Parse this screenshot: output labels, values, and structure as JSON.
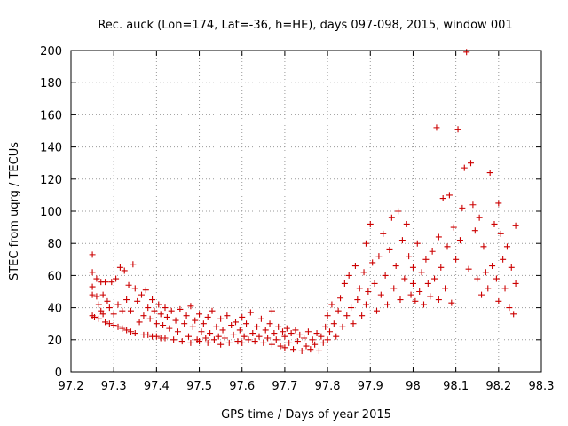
{
  "chart_data": {
    "type": "scatter",
    "title": "Rec. auck (Lon=174, Lat=-36, h=HE), days 097-098, 2015, window 001",
    "xlabel": "GPS time / Days of year 2015",
    "ylabel": "STEC from uqrg / TECUs",
    "xlim": [
      97.2,
      98.3
    ],
    "ylim": [
      0,
      200
    ],
    "x_ticks": [
      97.2,
      97.3,
      97.4,
      97.5,
      97.6,
      97.7,
      97.8,
      97.9,
      98,
      98.1,
      98.2,
      98.3
    ],
    "x_tick_labels": [
      "97.2",
      "97.3",
      "97.4",
      "97.5",
      "97.6",
      "97.7",
      "97.8",
      "97.9",
      "98",
      "98.1",
      "98.2",
      "98.3"
    ],
    "y_ticks": [
      0,
      20,
      40,
      60,
      80,
      100,
      120,
      140,
      160,
      180,
      200
    ],
    "y_tick_labels": [
      "0",
      "20",
      "40",
      "60",
      "80",
      "100",
      "120",
      "140",
      "160",
      "180",
      "200"
    ],
    "grid": true,
    "marker": "+",
    "series_color": "#cc0000",
    "series": [
      {
        "points": [
          [
            97.25,
            73
          ],
          [
            97.25,
            62
          ],
          [
            97.25,
            53
          ],
          [
            97.25,
            48
          ],
          [
            97.25,
            35
          ],
          [
            97.255,
            34
          ],
          [
            97.26,
            58
          ],
          [
            97.26,
            47
          ],
          [
            97.265,
            42
          ],
          [
            97.265,
            33
          ],
          [
            97.27,
            56
          ],
          [
            97.27,
            38
          ],
          [
            97.275,
            48
          ],
          [
            97.275,
            36
          ],
          [
            97.28,
            56
          ],
          [
            97.28,
            31
          ],
          [
            97.285,
            44
          ],
          [
            97.29,
            40
          ],
          [
            97.29,
            30
          ],
          [
            97.295,
            56
          ],
          [
            97.3,
            36
          ],
          [
            97.3,
            29
          ],
          [
            97.305,
            58
          ],
          [
            97.31,
            42
          ],
          [
            97.31,
            28
          ],
          [
            97.315,
            65
          ],
          [
            97.32,
            38
          ],
          [
            97.32,
            27
          ],
          [
            97.325,
            63
          ],
          [
            97.33,
            45
          ],
          [
            97.33,
            26
          ],
          [
            97.335,
            54
          ],
          [
            97.34,
            38
          ],
          [
            97.34,
            25
          ],
          [
            97.345,
            67
          ],
          [
            97.35,
            52
          ],
          [
            97.35,
            24
          ],
          [
            97.355,
            44
          ],
          [
            97.36,
            31
          ],
          [
            97.365,
            48
          ],
          [
            97.37,
            35
          ],
          [
            97.37,
            23
          ],
          [
            97.375,
            51
          ],
          [
            97.38,
            40
          ],
          [
            97.38,
            23
          ],
          [
            97.385,
            33
          ],
          [
            97.39,
            45
          ],
          [
            97.39,
            22
          ],
          [
            97.395,
            38
          ],
          [
            97.4,
            30
          ],
          [
            97.4,
            22
          ],
          [
            97.405,
            42
          ],
          [
            97.41,
            36
          ],
          [
            97.41,
            21
          ],
          [
            97.415,
            29
          ],
          [
            97.42,
            40
          ],
          [
            97.42,
            21
          ],
          [
            97.425,
            34
          ],
          [
            97.43,
            27
          ],
          [
            97.435,
            38
          ],
          [
            97.44,
            20
          ],
          [
            97.445,
            32
          ],
          [
            97.45,
            25
          ],
          [
            97.455,
            39
          ],
          [
            97.46,
            19
          ],
          [
            97.465,
            30
          ],
          [
            97.47,
            35
          ],
          [
            97.475,
            22
          ],
          [
            97.48,
            41
          ],
          [
            97.48,
            18
          ],
          [
            97.485,
            28
          ],
          [
            97.49,
            32
          ],
          [
            97.495,
            20
          ],
          [
            97.5,
            36
          ],
          [
            97.5,
            19
          ],
          [
            97.505,
            25
          ],
          [
            97.51,
            30
          ],
          [
            97.515,
            21
          ],
          [
            97.52,
            34
          ],
          [
            97.52,
            18
          ],
          [
            97.525,
            24
          ],
          [
            97.53,
            38
          ],
          [
            97.535,
            20
          ],
          [
            97.54,
            28
          ],
          [
            97.545,
            22
          ],
          [
            97.55,
            33
          ],
          [
            97.55,
            17
          ],
          [
            97.555,
            26
          ],
          [
            97.56,
            21
          ],
          [
            97.565,
            35
          ],
          [
            97.57,
            18
          ],
          [
            97.575,
            29
          ],
          [
            97.58,
            23
          ],
          [
            97.585,
            31
          ],
          [
            97.59,
            19
          ],
          [
            97.595,
            26
          ],
          [
            97.6,
            34
          ],
          [
            97.6,
            18
          ],
          [
            97.605,
            22
          ],
          [
            97.61,
            30
          ],
          [
            97.615,
            20
          ],
          [
            97.62,
            37
          ],
          [
            97.625,
            24
          ],
          [
            97.63,
            19
          ],
          [
            97.635,
            28
          ],
          [
            97.64,
            22
          ],
          [
            97.645,
            33
          ],
          [
            97.65,
            18
          ],
          [
            97.655,
            26
          ],
          [
            97.66,
            21
          ],
          [
            97.665,
            30
          ],
          [
            97.67,
            38
          ],
          [
            97.67,
            17
          ],
          [
            97.675,
            24
          ],
          [
            97.68,
            20
          ],
          [
            97.685,
            28
          ],
          [
            97.69,
            16
          ],
          [
            97.695,
            25
          ],
          [
            97.7,
            22
          ],
          [
            97.7,
            15
          ],
          [
            97.705,
            27
          ],
          [
            97.71,
            18
          ],
          [
            97.715,
            24
          ],
          [
            97.72,
            14
          ],
          [
            97.725,
            26
          ],
          [
            97.73,
            19
          ],
          [
            97.735,
            23
          ],
          [
            97.74,
            13
          ],
          [
            97.745,
            21
          ],
          [
            97.75,
            16
          ],
          [
            97.755,
            25
          ],
          [
            97.76,
            14
          ],
          [
            97.765,
            20
          ],
          [
            97.77,
            17
          ],
          [
            97.775,
            24
          ],
          [
            97.78,
            13
          ],
          [
            97.785,
            22
          ],
          [
            97.79,
            18
          ],
          [
            97.795,
            28
          ],
          [
            97.8,
            20
          ],
          [
            97.8,
            35
          ],
          [
            97.805,
            25
          ],
          [
            97.81,
            42
          ],
          [
            97.815,
            30
          ],
          [
            97.82,
            22
          ],
          [
            97.825,
            38
          ],
          [
            97.83,
            46
          ],
          [
            97.835,
            28
          ],
          [
            97.84,
            55
          ],
          [
            97.845,
            35
          ],
          [
            97.85,
            60
          ],
          [
            97.855,
            40
          ],
          [
            97.86,
            30
          ],
          [
            97.865,
            66
          ],
          [
            97.87,
            45
          ],
          [
            97.875,
            52
          ],
          [
            97.88,
            35
          ],
          [
            97.885,
            62
          ],
          [
            97.89,
            80
          ],
          [
            97.89,
            42
          ],
          [
            97.895,
            50
          ],
          [
            97.9,
            92
          ],
          [
            97.905,
            68
          ],
          [
            97.91,
            55
          ],
          [
            97.915,
            38
          ],
          [
            97.92,
            72
          ],
          [
            97.925,
            48
          ],
          [
            97.93,
            86
          ],
          [
            97.935,
            60
          ],
          [
            97.94,
            42
          ],
          [
            97.945,
            76
          ],
          [
            97.95,
            96
          ],
          [
            97.955,
            52
          ],
          [
            97.96,
            66
          ],
          [
            97.965,
            100
          ],
          [
            97.97,
            45
          ],
          [
            97.975,
            82
          ],
          [
            97.98,
            58
          ],
          [
            97.985,
            92
          ],
          [
            97.99,
            72
          ],
          [
            97.995,
            48
          ],
          [
            98.0,
            65
          ],
          [
            98.0,
            55
          ],
          [
            98.005,
            44
          ],
          [
            98.01,
            80
          ],
          [
            98.015,
            50
          ],
          [
            98.02,
            62
          ],
          [
            98.025,
            42
          ],
          [
            98.03,
            70
          ],
          [
            98.035,
            55
          ],
          [
            98.04,
            47
          ],
          [
            98.045,
            75
          ],
          [
            98.05,
            58
          ],
          [
            98.055,
            152
          ],
          [
            98.06,
            84
          ],
          [
            98.06,
            45
          ],
          [
            98.065,
            65
          ],
          [
            98.07,
            108
          ],
          [
            98.075,
            52
          ],
          [
            98.08,
            78
          ],
          [
            98.085,
            110
          ],
          [
            98.09,
            43
          ],
          [
            98.095,
            90
          ],
          [
            98.1,
            70
          ],
          [
            98.105,
            151
          ],
          [
            98.11,
            82
          ],
          [
            98.115,
            102
          ],
          [
            98.12,
            127
          ],
          [
            98.125,
            199
          ],
          [
            98.13,
            64
          ],
          [
            98.135,
            130
          ],
          [
            98.14,
            104
          ],
          [
            98.145,
            88
          ],
          [
            98.15,
            58
          ],
          [
            98.155,
            96
          ],
          [
            98.16,
            48
          ],
          [
            98.165,
            78
          ],
          [
            98.17,
            62
          ],
          [
            98.175,
            52
          ],
          [
            98.18,
            124
          ],
          [
            98.185,
            66
          ],
          [
            98.19,
            92
          ],
          [
            98.195,
            58
          ],
          [
            98.2,
            105
          ],
          [
            98.2,
            44
          ],
          [
            98.205,
            86
          ],
          [
            98.21,
            70
          ],
          [
            98.215,
            52
          ],
          [
            98.22,
            78
          ],
          [
            98.225,
            40
          ],
          [
            98.23,
            65
          ],
          [
            98.235,
            36
          ],
          [
            98.24,
            91
          ],
          [
            98.24,
            55
          ]
        ]
      }
    ]
  }
}
